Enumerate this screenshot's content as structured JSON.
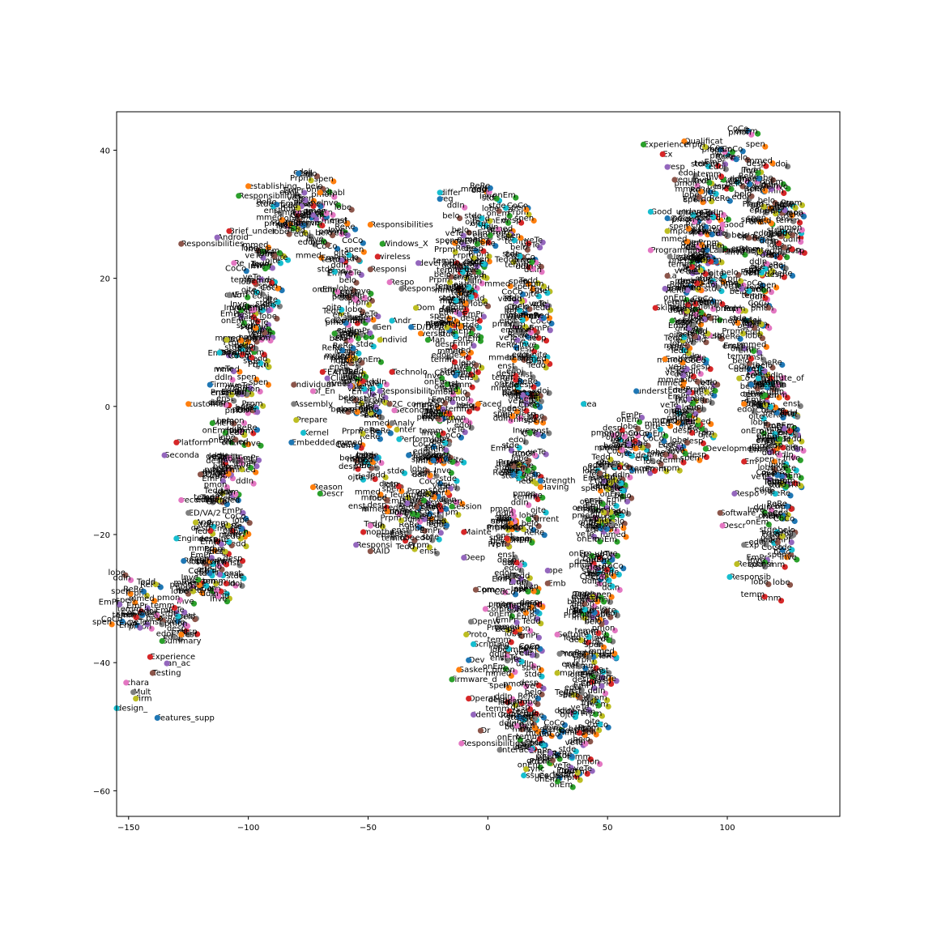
{
  "chart_data": {
    "type": "scatter",
    "title": "",
    "xlabel": "",
    "ylabel": "",
    "xlim": [
      -155,
      147
    ],
    "ylim": [
      -64,
      46
    ],
    "xticks": [
      -150,
      -100,
      -50,
      0,
      50,
      100
    ],
    "yticks": [
      -60,
      -40,
      -20,
      0,
      20,
      40
    ],
    "grid": false,
    "legend": "none",
    "palette": [
      "#1f77b4",
      "#ff7f0e",
      "#2ca02c",
      "#d62728",
      "#9467bd",
      "#8c564b",
      "#e377c2",
      "#7f7f7f",
      "#bcbd22",
      "#17becf"
    ],
    "labeled_points": [
      {
        "x": -79,
        "y": 36,
        "label": "call"
      },
      {
        "x": -100,
        "y": 34,
        "label": "establishing"
      },
      {
        "x": -104,
        "y": 32.5,
        "label": "Responsibilities"
      },
      {
        "x": -108,
        "y": 27,
        "label": "Brief_under"
      },
      {
        "x": -113,
        "y": 26,
        "label": "Android"
      },
      {
        "x": -128,
        "y": 25,
        "label": "Responsibilities"
      },
      {
        "x": -106,
        "y": 22,
        "label": "Re"
      },
      {
        "x": -108,
        "y": 17,
        "label": "Wo"
      },
      {
        "x": -109,
        "y": 10,
        "label": "C"
      },
      {
        "x": -112,
        "y": 8,
        "label": "Downlo"
      },
      {
        "x": -116,
        "y": 3,
        "label": "Firmw"
      },
      {
        "x": -125,
        "y": 0,
        "label": "customer_"
      },
      {
        "x": -115,
        "y": -3,
        "label": "Micro"
      },
      {
        "x": -130,
        "y": -6,
        "label": "Platform"
      },
      {
        "x": -135,
        "y": -8,
        "label": "Seconda"
      },
      {
        "x": -120,
        "y": -11,
        "label": "ED/DE"
      },
      {
        "x": -128,
        "y": -15,
        "label": "recommended"
      },
      {
        "x": -125,
        "y": -17,
        "label": "ED/VA/2"
      },
      {
        "x": -122,
        "y": -18.5,
        "label": "And"
      },
      {
        "x": -130,
        "y": -21,
        "label": "Engineer"
      },
      {
        "x": -127,
        "y": -24.5,
        "label": "Requiremen"
      },
      {
        "x": -128,
        "y": -36,
        "label": "Test"
      },
      {
        "x": -136,
        "y": -37,
        "label": "Summary"
      },
      {
        "x": -141,
        "y": -39.5,
        "label": "Experience"
      },
      {
        "x": -134,
        "y": -40.5,
        "label": "an_ac"
      },
      {
        "x": -140,
        "y": -42,
        "label": "Testing"
      },
      {
        "x": -151,
        "y": -43.5,
        "label": "chara"
      },
      {
        "x": -148,
        "y": -45,
        "label": "Mult"
      },
      {
        "x": -147,
        "y": -46,
        "label": "firm"
      },
      {
        "x": -155,
        "y": -47.5,
        "label": "design_"
      },
      {
        "x": -138,
        "y": -49,
        "label": "features_supp"
      },
      {
        "x": -70,
        "y": 33,
        "label": "establ"
      },
      {
        "x": -64,
        "y": 11,
        "label": "Emb"
      },
      {
        "x": -69,
        "y": 5,
        "label": "FEATURE"
      },
      {
        "x": -67,
        "y": 4,
        "label": "(Clie"
      },
      {
        "x": -81,
        "y": 3,
        "label": "Individual"
      },
      {
        "x": -73,
        "y": 2,
        "label": "of_En"
      },
      {
        "x": -81,
        "y": 0,
        "label": "Assembly"
      },
      {
        "x": -80,
        "y": -2.5,
        "label": "Prepare"
      },
      {
        "x": -77,
        "y": -4.5,
        "label": "Kernel"
      },
      {
        "x": -82,
        "y": -6,
        "label": "Embedded"
      },
      {
        "x": -73,
        "y": -13,
        "label": "Reason"
      },
      {
        "x": -70,
        "y": -14,
        "label": "Descr"
      },
      {
        "x": -52,
        "y": -20,
        "label": "months_a"
      },
      {
        "x": -55,
        "y": -22,
        "label": "Responsi"
      },
      {
        "x": -49,
        "y": -23,
        "label": "RAID"
      },
      {
        "x": -49,
        "y": -19,
        "label": "Fun"
      },
      {
        "x": -47,
        "y": 12,
        "label": "Gen"
      },
      {
        "x": -45,
        "y": 10,
        "label": "Individ"
      },
      {
        "x": -20,
        "y": 33,
        "label": "differ"
      },
      {
        "x": -20,
        "y": 32,
        "label": "req"
      },
      {
        "x": -49,
        "y": 28,
        "label": "Responsibilities"
      },
      {
        "x": -44,
        "y": 25,
        "label": "Windows_X"
      },
      {
        "x": -46,
        "y": 23,
        "label": "wireless"
      },
      {
        "x": -29,
        "y": 22,
        "label": "devel"
      },
      {
        "x": -49,
        "y": 21,
        "label": "Responsi"
      },
      {
        "x": -41,
        "y": 19,
        "label": "Respo"
      },
      {
        "x": -36,
        "y": 18,
        "label": "Responsibilities"
      },
      {
        "x": -30,
        "y": 15,
        "label": "Dom"
      },
      {
        "x": -40,
        "y": 13,
        "label": "Andr"
      },
      {
        "x": -32,
        "y": 12,
        "label": "ED/D"
      },
      {
        "x": -28,
        "y": 11,
        "label": "versio"
      },
      {
        "x": -25,
        "y": 10,
        "label": "Man"
      },
      {
        "x": -40,
        "y": 5,
        "label": "Technolo"
      },
      {
        "x": -45,
        "y": 2,
        "label": "Responsibilit"
      },
      {
        "x": -41,
        "y": 0,
        "label": "I2C_comm"
      },
      {
        "x": -39,
        "y": -1,
        "label": "Secondar"
      },
      {
        "x": -40,
        "y": -3,
        "label": "Analy"
      },
      {
        "x": -38,
        "y": -4,
        "label": "Inter"
      },
      {
        "x": -37,
        "y": -5.5,
        "label": "Perform"
      },
      {
        "x": -33,
        "y": -8,
        "label": "Mar"
      },
      {
        "x": -4,
        "y": 0,
        "label": "Faced"
      },
      {
        "x": -15,
        "y": -16,
        "label": "session"
      },
      {
        "x": -10,
        "y": -20,
        "label": "Mainte"
      },
      {
        "x": -10,
        "y": -24,
        "label": "Deep"
      },
      {
        "x": -5,
        "y": -29,
        "label": "Com"
      },
      {
        "x": -1,
        "y": -32,
        "label": "Commun"
      },
      {
        "x": -7,
        "y": -34,
        "label": "OpenW"
      },
      {
        "x": -9,
        "y": -36,
        "label": "Proto"
      },
      {
        "x": -6,
        "y": -37.5,
        "label": "Scripting"
      },
      {
        "x": -8,
        "y": -40,
        "label": "Dev"
      },
      {
        "x": -12,
        "y": -41.5,
        "label": "Sasken"
      },
      {
        "x": -15,
        "y": -43,
        "label": "firmware_d"
      },
      {
        "x": -8,
        "y": -46,
        "label": "Operat"
      },
      {
        "x": -6,
        "y": -48.5,
        "label": "Identi"
      },
      {
        "x": -3,
        "y": -51,
        "label": "Dr"
      },
      {
        "x": -11,
        "y": -53,
        "label": "Responsibilities"
      },
      {
        "x": 5,
        "y": -54,
        "label": "Interac"
      },
      {
        "x": 16,
        "y": -57,
        "label": "sync"
      },
      {
        "x": 15,
        "y": -58,
        "label": "issues_relat"
      },
      {
        "x": 22,
        "y": -12,
        "label": "Strength"
      },
      {
        "x": 22,
        "y": -13,
        "label": "Having"
      },
      {
        "x": 17,
        "y": -18,
        "label": "Current"
      },
      {
        "x": 8,
        "y": -21,
        "label": "mana"
      },
      {
        "x": 25,
        "y": -26,
        "label": "ope"
      },
      {
        "x": 25,
        "y": -28,
        "label": "Emb"
      },
      {
        "x": 29,
        "y": -36,
        "label": "Soft"
      },
      {
        "x": 30,
        "y": -39,
        "label": "Pro"
      },
      {
        "x": 29,
        "y": -42,
        "label": "Impleme"
      },
      {
        "x": 40,
        "y": 0,
        "label": "tea"
      },
      {
        "x": 62,
        "y": 2,
        "label": "underst"
      },
      {
        "x": 74,
        "y": 7,
        "label": "Embedd"
      },
      {
        "x": 77,
        "y": 13,
        "label": "Achieve"
      },
      {
        "x": 70,
        "y": 15,
        "label": "Skills_"
      },
      {
        "x": 74,
        "y": 18,
        "label": "pr"
      },
      {
        "x": 75,
        "y": 20,
        "label": "La"
      },
      {
        "x": 68,
        "y": 24,
        "label": "Programming_Languag"
      },
      {
        "x": 76,
        "y": 23,
        "label": "Underst"
      },
      {
        "x": 75,
        "y": 27,
        "label": "Imp"
      },
      {
        "x": 68,
        "y": 30,
        "label": "Good_unders"
      },
      {
        "x": 75,
        "y": 29,
        "label": "upo"
      },
      {
        "x": 82,
        "y": 41,
        "label": "Qualificat"
      },
      {
        "x": 65,
        "y": 40.5,
        "label": "Experience"
      },
      {
        "x": 73,
        "y": 39,
        "label": "Ex"
      },
      {
        "x": 75,
        "y": 37,
        "label": "resp"
      },
      {
        "x": 78,
        "y": 35,
        "label": "requi"
      },
      {
        "x": 98,
        "y": 28,
        "label": "Good"
      },
      {
        "x": 97,
        "y": 24,
        "label": "Implement"
      },
      {
        "x": 105,
        "y": 4,
        "label": "Co"
      },
      {
        "x": 113,
        "y": 4,
        "label": "Institute_of"
      },
      {
        "x": 110,
        "y": 3,
        "label": "Operatin"
      },
      {
        "x": 107,
        "y": 0,
        "label": "comm"
      },
      {
        "x": 91,
        "y": -7,
        "label": "Development"
      },
      {
        "x": 107,
        "y": -9,
        "label": "Em"
      },
      {
        "x": 103,
        "y": -14,
        "label": "Respo"
      },
      {
        "x": 97,
        "y": -17,
        "label": "Software_"
      },
      {
        "x": 98,
        "y": -19,
        "label": "Descr"
      },
      {
        "x": 107,
        "y": -22,
        "label": "Exp"
      },
      {
        "x": 104,
        "y": -25,
        "label": "Responsi"
      },
      {
        "x": 101,
        "y": -27,
        "label": "Responsib"
      }
    ]
  }
}
